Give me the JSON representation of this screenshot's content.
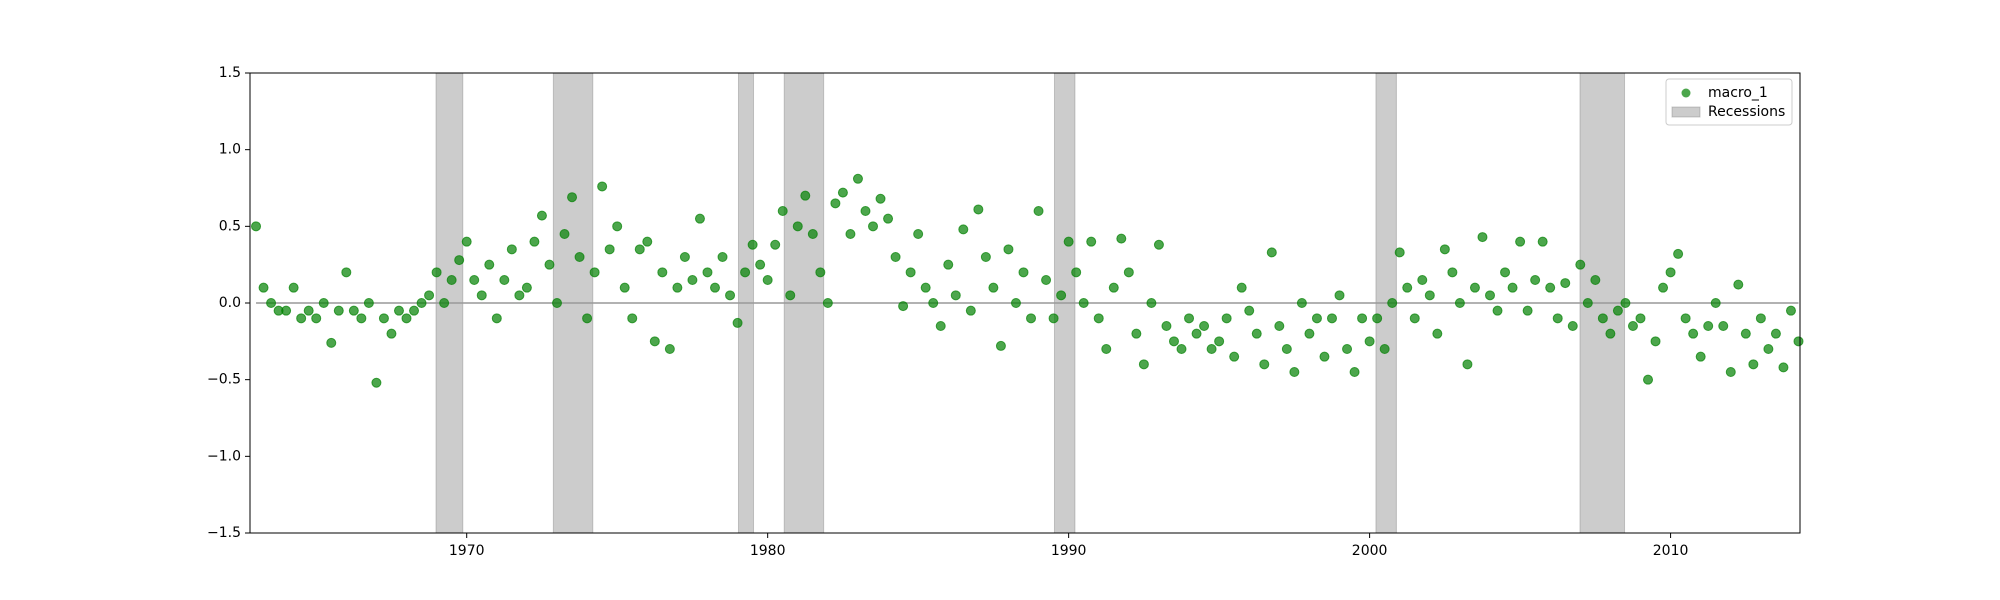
{
  "chart_data": {
    "type": "scatter",
    "xlim": [
      1962.8,
      2014.3
    ],
    "ylim": [
      -1.5,
      1.5
    ],
    "xticks": [
      1970,
      1980,
      1990,
      2000,
      2010
    ],
    "yticks": [
      {
        "value": -1.5,
        "label": "−1.5"
      },
      {
        "value": -1.0,
        "label": "−1.0"
      },
      {
        "value": -0.5,
        "label": "−0.5"
      },
      {
        "value": 0.0,
        "label": "0.0"
      },
      {
        "value": 0.5,
        "label": "0.5"
      },
      {
        "value": 1.0,
        "label": "1.0"
      },
      {
        "value": 1.5,
        "label": "1.5"
      }
    ],
    "reference_line": 0,
    "legend": "upper right",
    "series": [
      {
        "name": "macro_1",
        "color": "#008000",
        "x": [
          1963,
          1963.25,
          1963.5,
          1963.75,
          1964,
          1964.25,
          1964.5,
          1964.75,
          1965,
          1965.25,
          1965.5,
          1965.75,
          1966,
          1966.25,
          1966.5,
          1966.75,
          1967,
          1967.25,
          1967.5,
          1967.75,
          1968,
          1968.25,
          1968.5,
          1968.75,
          1969,
          1969.25,
          1969.5,
          1969.75,
          1970,
          1970.25,
          1970.5,
          1970.75,
          1971,
          1971.25,
          1971.5,
          1971.75,
          1972,
          1972.25,
          1972.5,
          1972.75,
          1973,
          1973.25,
          1973.5,
          1973.75,
          1974,
          1974.25,
          1974.5,
          1974.75,
          1975,
          1975.25,
          1975.5,
          1975.75,
          1976,
          1976.25,
          1976.5,
          1976.75,
          1977,
          1977.25,
          1977.5,
          1977.75,
          1978,
          1978.25,
          1978.5,
          1978.75,
          1979,
          1979.25,
          1979.5,
          1979.75,
          1980,
          1980.25,
          1980.5,
          1980.75,
          1981,
          1981.25,
          1981.5,
          1981.75,
          1982,
          1982.25,
          1982.5,
          1982.75,
          1983,
          1983.25,
          1983.5,
          1983.75,
          1984,
          1984.25,
          1984.5,
          1984.75,
          1985,
          1985.25,
          1985.5,
          1985.75,
          1986,
          1986.25,
          1986.5,
          1986.75,
          1987,
          1987.25,
          1987.5,
          1987.75,
          1988,
          1988.25,
          1988.5,
          1988.75,
          1989,
          1989.25,
          1989.5,
          1989.75,
          1990,
          1990.25,
          1990.5,
          1990.75,
          1991,
          1991.25,
          1991.5,
          1991.75,
          1992,
          1992.25,
          1992.5,
          1992.75,
          1993,
          1993.25,
          1993.5,
          1993.75,
          1994,
          1994.25,
          1994.5,
          1994.75,
          1995,
          1995.25,
          1995.5,
          1995.75,
          1996,
          1996.25,
          1996.5,
          1996.75,
          1997,
          1997.25,
          1997.5,
          1997.75,
          1998,
          1998.25,
          1998.5,
          1998.75,
          1999,
          1999.25,
          1999.5,
          1999.75,
          2000,
          2000.25,
          2000.5,
          2000.75,
          2001,
          2001.25,
          2001.5,
          2001.75,
          2002,
          2002.25,
          2002.5,
          2002.75,
          2003,
          2003.25,
          2003.5,
          2003.75,
          2004,
          2004.25,
          2004.5,
          2004.75,
          2005,
          2005.25,
          2005.5,
          2005.75,
          2006,
          2006.25,
          2006.5,
          2006.75,
          2007,
          2007.25,
          2007.5,
          2007.75,
          2008,
          2008.25,
          2008.5,
          2008.75,
          2009,
          2009.25,
          2009.5,
          2009.75,
          2010,
          2010.25,
          2010.5,
          2010.75,
          2011,
          2011.25,
          2011.5,
          2011.75,
          2012,
          2012.25,
          2012.5,
          2012.75,
          2013,
          2013.25,
          2013.5,
          2013.75,
          2014,
          2014.25
        ],
        "values": [
          0.5,
          0.1,
          0.0,
          -0.05,
          -0.05,
          0.1,
          -0.1,
          -0.05,
          -0.1,
          0.0,
          -0.26,
          -0.05,
          0.2,
          -0.05,
          -0.1,
          0.0,
          -0.52,
          -0.1,
          -0.2,
          -0.05,
          -0.1,
          -0.05,
          0.0,
          0.05,
          0.2,
          0.0,
          0.15,
          0.28,
          0.4,
          0.15,
          0.05,
          0.25,
          -0.1,
          0.15,
          0.35,
          0.05,
          0.1,
          0.4,
          0.57,
          0.25,
          0.0,
          0.45,
          0.69,
          0.3,
          -0.1,
          0.2,
          0.76,
          0.35,
          0.5,
          0.1,
          -0.1,
          0.35,
          0.4,
          -0.25,
          0.2,
          -0.3,
          0.1,
          0.3,
          0.15,
          0.55,
          0.2,
          0.1,
          0.3,
          0.05,
          -0.13,
          0.2,
          0.38,
          0.25,
          0.15,
          0.38,
          0.6,
          0.05,
          0.5,
          0.7,
          0.45,
          0.2,
          0.0,
          0.65,
          0.72,
          0.45,
          0.81,
          0.6,
          0.5,
          0.68,
          0.55,
          0.3,
          -0.02,
          0.2,
          0.45,
          0.1,
          0.0,
          -0.15,
          0.25,
          0.05,
          0.48,
          -0.05,
          0.61,
          0.3,
          0.1,
          -0.28,
          0.35,
          0.0,
          0.2,
          -0.1,
          0.6,
          0.15,
          -0.1,
          0.05,
          0.4,
          0.2,
          0.0,
          0.4,
          -0.1,
          -0.3,
          0.1,
          0.42,
          0.2,
          -0.2,
          -0.4,
          0.0,
          0.38,
          -0.15,
          -0.25,
          -0.3,
          -0.1,
          -0.2,
          -0.15,
          -0.3,
          -0.25,
          -0.1,
          -0.35,
          0.1,
          -0.05,
          -0.2,
          -0.4,
          0.33,
          -0.15,
          -0.3,
          -0.45,
          0.0,
          -0.2,
          -0.1,
          -0.35,
          -0.1,
          0.05,
          -0.3,
          -0.45,
          -0.1,
          -0.25,
          -0.1,
          -0.3,
          0.0,
          0.33,
          0.1,
          -0.1,
          0.15,
          0.05,
          -0.2,
          0.35,
          0.2,
          0.0,
          -0.4,
          0.1,
          0.43,
          0.05,
          -0.05,
          0.2,
          0.1,
          0.4,
          -0.05,
          0.15,
          0.4,
          0.1,
          -0.1,
          0.13,
          -0.15,
          0.25,
          0.0,
          0.15,
          -0.1,
          -0.2,
          -0.05,
          0.0,
          -0.15,
          -0.1,
          -0.5,
          -0.25,
          0.1,
          0.2,
          0.32,
          -0.1,
          -0.2,
          -0.35,
          -0.15,
          0.0,
          -0.15,
          -0.45,
          0.12,
          -0.2,
          -0.4,
          -0.1,
          -0.3,
          -0.2,
          -0.42,
          -0.05,
          -0.25
        ]
      }
    ],
    "recessions": {
      "name": "Recessions",
      "color": "#808080",
      "spans": [
        [
          1968.98,
          1969.87
        ],
        [
          1972.88,
          1974.19
        ],
        [
          1979.03,
          1979.53
        ],
        [
          1980.55,
          1981.86
        ],
        [
          1989.53,
          1990.21
        ],
        [
          2000.21,
          2000.89
        ],
        [
          2006.99,
          2008.47
        ]
      ]
    }
  }
}
